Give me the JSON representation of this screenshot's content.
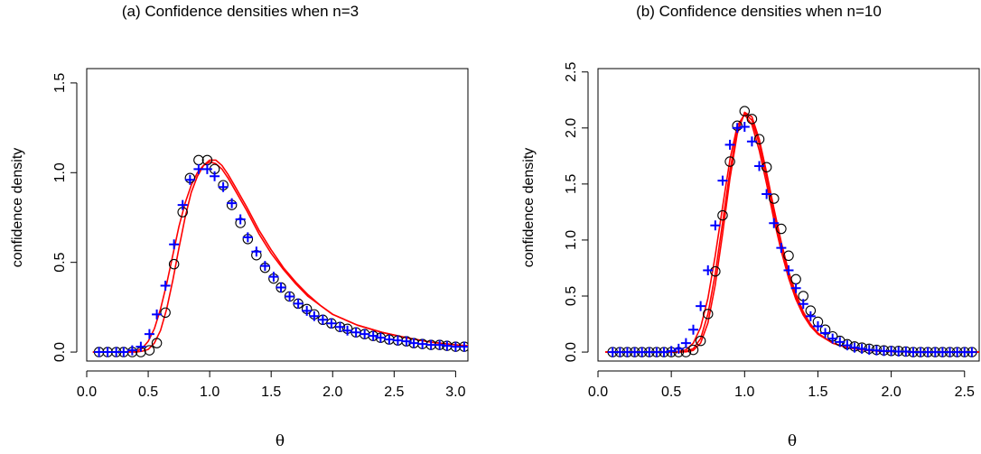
{
  "chart_data": [
    {
      "type": "line",
      "title": "(a) Confidence densities when n=3",
      "xlabel": "θ",
      "ylabel": "confidence density",
      "xlim": [
        0,
        3.1
      ],
      "ylim": [
        -0.05,
        1.58
      ],
      "xticks": [
        "0.0",
        "0.5",
        "1.0",
        "1.5",
        "2.0",
        "2.5",
        "3.0"
      ],
      "yticks": [
        "0.0",
        "0.5",
        "1.0",
        "1.5"
      ],
      "xtick_values": [
        0,
        0.5,
        1.0,
        1.5,
        2.0,
        2.5,
        3.0
      ],
      "ytick_values": [
        0,
        0.5,
        1.0,
        1.5
      ],
      "grid": false,
      "colors": {
        "line": "#ff0000",
        "circle": "#000000",
        "plus": "#0000ff"
      },
      "series": [
        {
          "style": "line",
          "x": [
            0.05,
            0.3,
            0.4,
            0.45,
            0.5,
            0.55,
            0.6,
            0.65,
            0.7,
            0.75,
            0.8,
            0.85,
            0.9,
            0.95,
            1.0,
            1.05,
            1.1,
            1.15,
            1.2,
            1.3,
            1.4,
            1.5,
            1.6,
            1.7,
            1.8,
            1.9,
            2.0,
            2.2,
            2.4,
            2.6,
            2.8,
            3.0,
            3.1
          ],
          "y": [
            0,
            0,
            0.005,
            0.02,
            0.06,
            0.13,
            0.24,
            0.38,
            0.54,
            0.7,
            0.83,
            0.93,
            1.0,
            1.04,
            1.06,
            1.05,
            1.02,
            0.97,
            0.91,
            0.79,
            0.66,
            0.55,
            0.46,
            0.38,
            0.31,
            0.26,
            0.21,
            0.15,
            0.11,
            0.08,
            0.055,
            0.04,
            0.035
          ]
        },
        {
          "style": "line",
          "x": [
            0.05,
            0.3,
            0.4,
            0.45,
            0.5,
            0.55,
            0.6,
            0.65,
            0.7,
            0.75,
            0.8,
            0.85,
            0.9,
            0.95,
            1.0,
            1.05,
            1.1,
            1.15,
            1.2,
            1.3,
            1.4,
            1.5,
            1.6,
            1.7,
            1.8,
            1.9,
            2.0,
            2.2,
            2.4,
            2.6,
            2.8,
            3.0,
            3.1
          ],
          "y": [
            0,
            0,
            0,
            0.005,
            0.015,
            0.05,
            0.12,
            0.24,
            0.4,
            0.58,
            0.75,
            0.89,
            0.98,
            1.04,
            1.07,
            1.07,
            1.04,
            0.99,
            0.93,
            0.81,
            0.68,
            0.57,
            0.47,
            0.39,
            0.32,
            0.26,
            0.21,
            0.15,
            0.11,
            0.08,
            0.055,
            0.04,
            0.035
          ]
        },
        {
          "style": "circle",
          "x": [
            0.1,
            0.17,
            0.24,
            0.3,
            0.37,
            0.44,
            0.51,
            0.57,
            0.64,
            0.71,
            0.78,
            0.84,
            0.91,
            0.98,
            1.04,
            1.11,
            1.18,
            1.25,
            1.31,
            1.38,
            1.45,
            1.52,
            1.58,
            1.65,
            1.72,
            1.79,
            1.85,
            1.92,
            1.99,
            2.06,
            2.12,
            2.19,
            2.26,
            2.33,
            2.39,
            2.46,
            2.53,
            2.6,
            2.66,
            2.73,
            2.8,
            2.87,
            2.93,
            3.0,
            3.07
          ],
          "y": [
            0,
            0,
            0,
            0,
            0,
            0,
            0.01,
            0.05,
            0.22,
            0.49,
            0.78,
            0.97,
            1.07,
            1.07,
            1.02,
            0.93,
            0.82,
            0.72,
            0.63,
            0.54,
            0.47,
            0.41,
            0.36,
            0.31,
            0.27,
            0.24,
            0.21,
            0.18,
            0.16,
            0.14,
            0.13,
            0.11,
            0.1,
            0.09,
            0.08,
            0.07,
            0.065,
            0.06,
            0.05,
            0.045,
            0.04,
            0.04,
            0.035,
            0.03,
            0.03
          ]
        },
        {
          "style": "plus",
          "x": [
            0.1,
            0.17,
            0.24,
            0.3,
            0.37,
            0.44,
            0.51,
            0.57,
            0.64,
            0.71,
            0.78,
            0.84,
            0.91,
            0.98,
            1.04,
            1.11,
            1.18,
            1.25,
            1.31,
            1.38,
            1.45,
            1.52,
            1.58,
            1.65,
            1.72,
            1.79,
            1.85,
            1.92,
            1.99,
            2.06,
            2.12,
            2.19,
            2.26,
            2.33,
            2.39,
            2.46,
            2.53,
            2.6,
            2.66,
            2.73,
            2.8,
            2.87,
            2.93,
            3.0,
            3.07
          ],
          "y": [
            0,
            0,
            0,
            0,
            0.01,
            0.03,
            0.1,
            0.21,
            0.37,
            0.6,
            0.82,
            0.96,
            1.02,
            1.02,
            0.98,
            0.92,
            0.83,
            0.74,
            0.64,
            0.56,
            0.48,
            0.42,
            0.36,
            0.31,
            0.27,
            0.23,
            0.2,
            0.18,
            0.16,
            0.14,
            0.12,
            0.11,
            0.1,
            0.09,
            0.08,
            0.07,
            0.065,
            0.06,
            0.05,
            0.045,
            0.04,
            0.04,
            0.035,
            0.03,
            0.03
          ]
        }
      ]
    },
    {
      "type": "line",
      "title": "(b) Confidence densities when n=10",
      "xlabel": "θ",
      "ylabel": "confidence density",
      "xlim": [
        0,
        2.6
      ],
      "ylim": [
        -0.08,
        2.53
      ],
      "xticks": [
        "0.0",
        "0.5",
        "1.0",
        "1.5",
        "2.0",
        "2.5"
      ],
      "yticks": [
        "0.0",
        "0.5",
        "1.0",
        "1.5",
        "2.0",
        "2.5"
      ],
      "xtick_values": [
        0,
        0.5,
        1.0,
        1.5,
        2.0,
        2.5
      ],
      "ytick_values": [
        0,
        0.5,
        1.0,
        1.5,
        2.0,
        2.5
      ],
      "grid": false,
      "colors": {
        "line": "#ff0000",
        "circle": "#000000",
        "plus": "#0000ff"
      },
      "series": [
        {
          "style": "line",
          "x": [
            0.05,
            0.5,
            0.55,
            0.6,
            0.65,
            0.7,
            0.75,
            0.8,
            0.85,
            0.9,
            0.95,
            1.0,
            1.05,
            1.1,
            1.15,
            1.2,
            1.25,
            1.3,
            1.35,
            1.4,
            1.45,
            1.5,
            1.6,
            1.7,
            1.8,
            1.9,
            2.0,
            2.2,
            2.4,
            2.6
          ],
          "y": [
            0,
            0,
            0.005,
            0.02,
            0.08,
            0.22,
            0.48,
            0.86,
            1.3,
            1.72,
            2.02,
            2.12,
            2.03,
            1.8,
            1.5,
            1.18,
            0.9,
            0.66,
            0.47,
            0.33,
            0.23,
            0.16,
            0.08,
            0.04,
            0.02,
            0.01,
            0.005,
            0,
            0,
            0
          ]
        },
        {
          "style": "line",
          "x": [
            0.05,
            0.5,
            0.55,
            0.6,
            0.65,
            0.7,
            0.75,
            0.8,
            0.85,
            0.9,
            0.95,
            1.0,
            1.05,
            1.1,
            1.15,
            1.2,
            1.25,
            1.3,
            1.35,
            1.4,
            1.45,
            1.5,
            1.6,
            1.7,
            1.8,
            1.9,
            2.0,
            2.2,
            2.4,
            2.6
          ],
          "y": [
            0,
            0,
            0,
            0.005,
            0.03,
            0.12,
            0.34,
            0.7,
            1.16,
            1.62,
            1.98,
            2.13,
            2.07,
            1.86,
            1.56,
            1.24,
            0.95,
            0.7,
            0.5,
            0.35,
            0.24,
            0.16,
            0.08,
            0.04,
            0.02,
            0.01,
            0.005,
            0,
            0,
            0
          ]
        },
        {
          "style": "line",
          "x": [
            0.05,
            0.5,
            0.55,
            0.6,
            0.65,
            0.7,
            0.75,
            0.8,
            0.85,
            0.9,
            0.95,
            1.0,
            1.05,
            1.1,
            1.15,
            1.2,
            1.25,
            1.3,
            1.35,
            1.4,
            1.45,
            1.5,
            1.6,
            1.7,
            1.8,
            1.9,
            2.0,
            2.2,
            2.4,
            2.6
          ],
          "y": [
            0,
            0,
            0,
            0.002,
            0.015,
            0.08,
            0.26,
            0.6,
            1.06,
            1.55,
            1.95,
            2.14,
            2.1,
            1.9,
            1.6,
            1.28,
            0.98,
            0.72,
            0.52,
            0.36,
            0.25,
            0.17,
            0.08,
            0.04,
            0.02,
            0.01,
            0.005,
            0,
            0,
            0
          ]
        },
        {
          "style": "circle",
          "x": [
            0.1,
            0.15,
            0.2,
            0.25,
            0.3,
            0.35,
            0.4,
            0.45,
            0.5,
            0.55,
            0.6,
            0.65,
            0.7,
            0.75,
            0.8,
            0.85,
            0.9,
            0.95,
            1.0,
            1.05,
            1.1,
            1.15,
            1.2,
            1.25,
            1.3,
            1.35,
            1.4,
            1.45,
            1.5,
            1.55,
            1.6,
            1.65,
            1.7,
            1.75,
            1.8,
            1.85,
            1.9,
            1.95,
            2.0,
            2.05,
            2.1,
            2.15,
            2.2,
            2.25,
            2.3,
            2.35,
            2.4,
            2.45,
            2.5,
            2.55
          ],
          "y": [
            0,
            0,
            0,
            0,
            0,
            0,
            0,
            0,
            0,
            0,
            0,
            0.02,
            0.1,
            0.34,
            0.72,
            1.22,
            1.7,
            2.02,
            2.15,
            2.08,
            1.9,
            1.65,
            1.37,
            1.1,
            0.86,
            0.65,
            0.5,
            0.37,
            0.27,
            0.2,
            0.14,
            0.1,
            0.07,
            0.05,
            0.04,
            0.03,
            0.02,
            0.015,
            0.01,
            0.01,
            0.005,
            0,
            0,
            0,
            0,
            0,
            0,
            0,
            0,
            0
          ]
        },
        {
          "style": "plus",
          "x": [
            0.1,
            0.15,
            0.2,
            0.25,
            0.3,
            0.35,
            0.4,
            0.45,
            0.5,
            0.55,
            0.6,
            0.65,
            0.7,
            0.75,
            0.8,
            0.85,
            0.9,
            0.95,
            1.0,
            1.05,
            1.1,
            1.15,
            1.2,
            1.25,
            1.3,
            1.35,
            1.4,
            1.45,
            1.5,
            1.55,
            1.6,
            1.65,
            1.7,
            1.75,
            1.8,
            1.85,
            1.9,
            1.95,
            2.0,
            2.05,
            2.1,
            2.15,
            2.2,
            2.25,
            2.3,
            2.35,
            2.4,
            2.45,
            2.5,
            2.55
          ],
          "y": [
            0,
            0,
            0,
            0,
            0,
            0,
            0,
            0,
            0.01,
            0.03,
            0.08,
            0.2,
            0.41,
            0.73,
            1.13,
            1.53,
            1.85,
            2.0,
            2.01,
            1.88,
            1.66,
            1.41,
            1.15,
            0.93,
            0.73,
            0.57,
            0.43,
            0.32,
            0.23,
            0.17,
            0.12,
            0.09,
            0.06,
            0.04,
            0.03,
            0.02,
            0.015,
            0.01,
            0.01,
            0.005,
            0.005,
            0,
            0,
            0,
            0,
            0,
            0,
            0,
            0,
            0
          ]
        }
      ]
    }
  ]
}
